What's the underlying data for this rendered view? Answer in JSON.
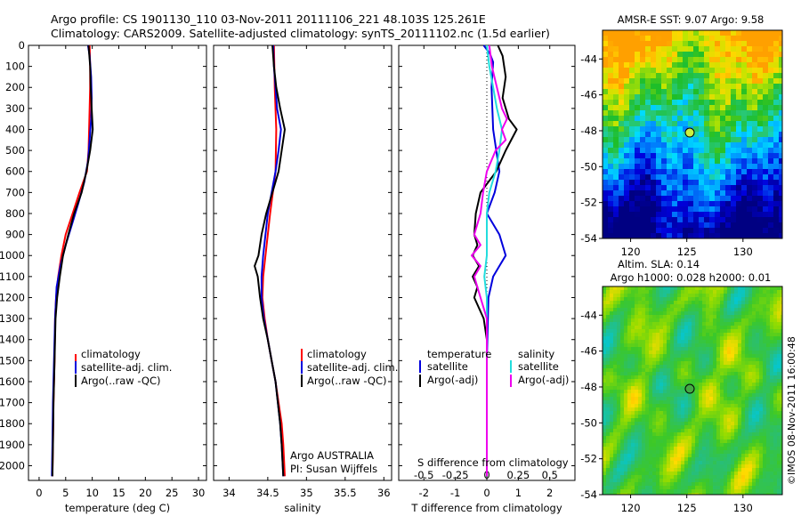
{
  "header": {
    "line1": "Argo profile: CS 1901130_110 03-Nov-2011 20111106_221 48.103S 125.261E",
    "line2": "Climatology: CARS2009. Satellite-adjusted climatology: synTS_20111102.nc (1.5d earlier)"
  },
  "colors": {
    "climatology": "#ff0000",
    "satellite": "#0000dd",
    "argo": "#000000",
    "sat_salinity": "#22dddd",
    "argo_salinity": "#ee00ee"
  },
  "chart_data": [
    {
      "type": "line",
      "name": "temperature",
      "xlabel": "temperature (deg C)",
      "ylabel": "",
      "xlim": [
        -2,
        31.5
      ],
      "ylim": [
        2070,
        0
      ],
      "xticks": [
        0,
        5,
        10,
        15,
        20,
        25,
        30
      ],
      "yticks": [
        0,
        100,
        200,
        300,
        400,
        500,
        600,
        700,
        800,
        900,
        1000,
        1100,
        1200,
        1300,
        1400,
        1500,
        1600,
        1700,
        1800,
        1900,
        2000
      ],
      "legend": [
        "climatology",
        "satellite-adj. clim.",
        "Argo(..raw -QC)"
      ],
      "legend_position": "lower-middle",
      "series": [
        {
          "name": "climatology",
          "color": "#ff0000",
          "points": [
            [
              9.5,
              0
            ],
            [
              9.6,
              100
            ],
            [
              9.6,
              200
            ],
            [
              9.5,
              300
            ],
            [
              9.4,
              400
            ],
            [
              9.3,
              500
            ],
            [
              9.0,
              600
            ],
            [
              7.6,
              700
            ],
            [
              6.3,
              800
            ],
            [
              5.0,
              900
            ],
            [
              4.2,
              1000
            ],
            [
              3.6,
              1100
            ],
            [
              3.2,
              1200
            ],
            [
              3.0,
              1300
            ],
            [
              2.9,
              1500
            ],
            [
              2.7,
              1700
            ],
            [
              2.6,
              1900
            ],
            [
              2.5,
              2050
            ]
          ]
        },
        {
          "name": "satellite-adj. clim.",
          "color": "#0000dd",
          "points": [
            [
              9.2,
              0
            ],
            [
              9.5,
              50
            ],
            [
              9.8,
              150
            ],
            [
              9.9,
              250
            ],
            [
              9.8,
              350
            ],
            [
              9.5,
              450
            ],
            [
              9.2,
              550
            ],
            [
              8.5,
              650
            ],
            [
              7.4,
              750
            ],
            [
              6.2,
              850
            ],
            [
              5.0,
              950
            ],
            [
              4.0,
              1050
            ],
            [
              3.3,
              1150
            ],
            [
              3.0,
              1300
            ],
            [
              2.8,
              1500
            ],
            [
              2.6,
              1700
            ],
            [
              2.5,
              1900
            ],
            [
              2.4,
              2050
            ]
          ]
        },
        {
          "name": "Argo(..raw -QC)",
          "color": "#000000",
          "points": [
            [
              9.3,
              0
            ],
            [
              9.6,
              100
            ],
            [
              9.7,
              200
            ],
            [
              9.9,
              300
            ],
            [
              10.1,
              400
            ],
            [
              9.6,
              500
            ],
            [
              8.9,
              600
            ],
            [
              8.0,
              700
            ],
            [
              6.6,
              800
            ],
            [
              5.5,
              900
            ],
            [
              4.5,
              1000
            ],
            [
              3.9,
              1100
            ],
            [
              3.4,
              1200
            ],
            [
              3.1,
              1300
            ],
            [
              2.9,
              1500
            ],
            [
              2.7,
              1700
            ],
            [
              2.6,
              1900
            ],
            [
              2.5,
              2050
            ]
          ]
        }
      ]
    },
    {
      "type": "line",
      "name": "salinity",
      "xlabel": "salinity",
      "ylabel": "",
      "xlim": [
        33.8,
        36.1
      ],
      "ylim": [
        2070,
        0
      ],
      "xticks": [
        34,
        34.5,
        35,
        35.5,
        36
      ],
      "legend": [
        "climatology",
        "satellite-adj. clim.",
        "Argo(..raw -QC)"
      ],
      "legend_position": "lower-middle",
      "annotations": [
        "Argo AUSTRALIA",
        "PI: Susan Wijffels"
      ],
      "series": [
        {
          "name": "climatology",
          "color": "#ff0000",
          "points": [
            [
              34.58,
              0
            ],
            [
              34.59,
              200
            ],
            [
              34.61,
              400
            ],
            [
              34.6,
              600
            ],
            [
              34.53,
              800
            ],
            [
              34.47,
              1000
            ],
            [
              34.44,
              1100
            ],
            [
              34.43,
              1200
            ],
            [
              34.46,
              1300
            ],
            [
              34.5,
              1400
            ],
            [
              34.55,
              1500
            ],
            [
              34.6,
              1600
            ],
            [
              34.64,
              1700
            ],
            [
              34.68,
              1800
            ],
            [
              34.7,
              1900
            ],
            [
              34.72,
              2050
            ]
          ]
        },
        {
          "name": "satellite-adj. clim.",
          "color": "#0000dd",
          "points": [
            [
              34.57,
              0
            ],
            [
              34.58,
              100
            ],
            [
              34.6,
              200
            ],
            [
              34.62,
              300
            ],
            [
              34.67,
              400
            ],
            [
              34.64,
              500
            ],
            [
              34.6,
              600
            ],
            [
              34.55,
              700
            ],
            [
              34.5,
              800
            ],
            [
              34.47,
              900
            ],
            [
              34.44,
              1000
            ],
            [
              34.42,
              1100
            ],
            [
              34.42,
              1200
            ],
            [
              34.45,
              1300
            ],
            [
              34.5,
              1400
            ],
            [
              34.55,
              1500
            ],
            [
              34.6,
              1600
            ],
            [
              34.63,
              1700
            ],
            [
              34.66,
              1800
            ],
            [
              34.68,
              1900
            ],
            [
              34.7,
              2050
            ]
          ]
        },
        {
          "name": "Argo(..raw -QC)",
          "color": "#000000",
          "points": [
            [
              34.56,
              0
            ],
            [
              34.58,
              100
            ],
            [
              34.61,
              200
            ],
            [
              34.66,
              300
            ],
            [
              34.72,
              400
            ],
            [
              34.68,
              500
            ],
            [
              34.64,
              600
            ],
            [
              34.56,
              700
            ],
            [
              34.48,
              800
            ],
            [
              34.42,
              900
            ],
            [
              34.38,
              1000
            ],
            [
              34.33,
              1050
            ],
            [
              34.37,
              1100
            ],
            [
              34.4,
              1200
            ],
            [
              34.44,
              1300
            ],
            [
              34.5,
              1400
            ],
            [
              34.55,
              1500
            ],
            [
              34.6,
              1600
            ],
            [
              34.63,
              1700
            ],
            [
              34.66,
              1800
            ],
            [
              34.68,
              1900
            ],
            [
              34.7,
              2050
            ]
          ]
        }
      ]
    },
    {
      "type": "line",
      "name": "difference",
      "xlabel": "T difference from climatology",
      "x2label": "S difference from climatology",
      "ylabel": "",
      "xlim": [
        -2.8,
        2.8
      ],
      "ylim": [
        2070,
        0
      ],
      "xticks": [
        -2,
        -1,
        0,
        1,
        2
      ],
      "x2lim": [
        -0.7,
        0.7
      ],
      "x2ticks": [
        -0.5,
        -0.25,
        0,
        0.25,
        0.5
      ],
      "x2ticklabels": [
        "-0.5",
        "-0.25",
        "0",
        "0.25",
        "0.5"
      ],
      "legend": [
        "temperature",
        "satellite",
        "Argo(-adj)",
        "salinity",
        "satellite",
        "Argo(-adj)"
      ],
      "legend_position": "lower",
      "series": [
        {
          "name": "satellite",
          "group": "temperature",
          "color": "#0000dd",
          "points": [
            [
              -0.1,
              0
            ],
            [
              0.1,
              40
            ],
            [
              0.2,
              80
            ],
            [
              0.15,
              200
            ],
            [
              0.2,
              400
            ],
            [
              0.3,
              500
            ],
            [
              0.4,
              600
            ],
            [
              0.25,
              700
            ],
            [
              0.0,
              800
            ],
            [
              0.4,
              900
            ],
            [
              0.6,
              1000
            ],
            [
              0.4,
              1050
            ],
            [
              0.2,
              1100
            ],
            [
              0.05,
              1200
            ],
            [
              0.0,
              1500
            ],
            [
              0.0,
              2050
            ]
          ]
        },
        {
          "name": "Argo(-adj)",
          "group": "temperature",
          "color": "#000000",
          "points": [
            [
              0.35,
              0
            ],
            [
              0.5,
              50
            ],
            [
              0.6,
              150
            ],
            [
              0.5,
              250
            ],
            [
              0.7,
              350
            ],
            [
              0.95,
              400
            ],
            [
              0.6,
              500
            ],
            [
              0.3,
              600
            ],
            [
              -0.2,
              700
            ],
            [
              -0.35,
              800
            ],
            [
              -0.4,
              900
            ],
            [
              -0.3,
              950
            ],
            [
              -0.45,
              1000
            ],
            [
              -0.25,
              1050
            ],
            [
              -0.45,
              1100
            ],
            [
              -0.3,
              1150
            ],
            [
              -0.4,
              1200
            ],
            [
              -0.1,
              1300
            ],
            [
              0.0,
              1400
            ],
            [
              0.0,
              2050
            ]
          ]
        },
        {
          "name": "satellite",
          "group": "salinity",
          "color": "#22dddd",
          "points": [
            [
              0.0,
              0
            ],
            [
              0.02,
              100
            ],
            [
              0.05,
              200
            ],
            [
              0.08,
              300
            ],
            [
              0.12,
              400
            ],
            [
              0.1,
              500
            ],
            [
              0.07,
              600
            ],
            [
              0.02,
              700
            ],
            [
              0.0,
              800
            ],
            [
              0.0,
              1000
            ],
            [
              -0.02,
              1100
            ],
            [
              0.0,
              1200
            ],
            [
              0.0,
              2050
            ]
          ]
        },
        {
          "name": "Argo(-adj)",
          "group": "salinity",
          "color": "#ee00ee",
          "points": [
            [
              0.02,
              0
            ],
            [
              0.04,
              100
            ],
            [
              0.08,
              200
            ],
            [
              0.12,
              300
            ],
            [
              0.16,
              350
            ],
            [
              0.12,
              400
            ],
            [
              0.15,
              450
            ],
            [
              0.07,
              500
            ],
            [
              0.0,
              600
            ],
            [
              -0.03,
              700
            ],
            [
              -0.05,
              800
            ],
            [
              -0.1,
              900
            ],
            [
              -0.05,
              950
            ],
            [
              -0.12,
              1000
            ],
            [
              -0.05,
              1050
            ],
            [
              -0.1,
              1100
            ],
            [
              -0.05,
              1200
            ],
            [
              0.0,
              1300
            ],
            [
              0.0,
              2050
            ]
          ]
        }
      ]
    },
    {
      "type": "heatmap",
      "name": "sst-map",
      "title": "AMSR-E SST: 9.07 Argo: 9.58",
      "xlim": [
        117.5,
        133.5
      ],
      "ylim": [
        -54,
        -42.4
      ],
      "xticks": [
        120,
        125,
        130
      ],
      "yticks": [
        -44,
        -46,
        -48,
        -50,
        -52,
        -54
      ],
      "marker": {
        "lon": 125.261,
        "lat": -48.103
      }
    },
    {
      "type": "heatmap",
      "name": "sla-map",
      "title": "Altim. SLA: 0.14",
      "subtitle": "Argo h1000: 0.028 h2000: 0.01",
      "xlim": [
        117.5,
        133.5
      ],
      "ylim": [
        -54,
        -42.4
      ],
      "xticks": [
        120,
        125,
        130
      ],
      "yticks": [
        -44,
        -46,
        -48,
        -50,
        -52,
        -54
      ],
      "marker": {
        "lon": 125.261,
        "lat": -48.103
      },
      "credit": "©IMOS 08-Nov-2011 16:00:48"
    }
  ]
}
